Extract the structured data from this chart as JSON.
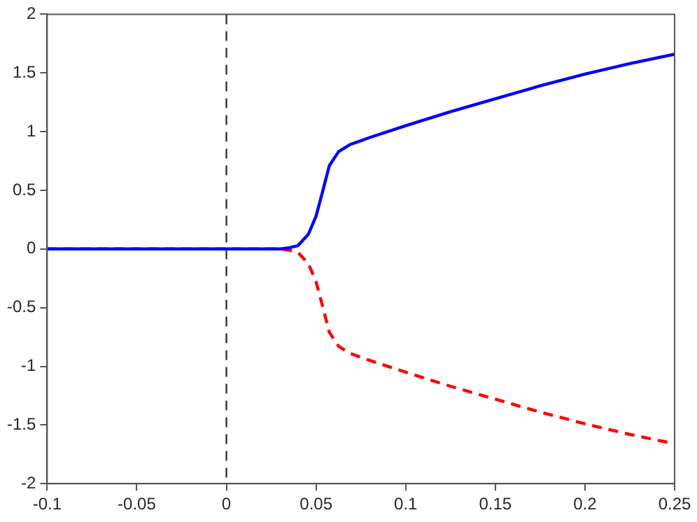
{
  "chart_data": {
    "type": "line",
    "xlim": [
      -0.1,
      0.25
    ],
    "ylim": [
      -2,
      2
    ],
    "xticks": [
      -0.1,
      -0.05,
      0,
      0.05,
      0.1,
      0.15,
      0.2,
      0.25
    ],
    "yticks": [
      -2,
      -1.5,
      -1,
      -0.5,
      0,
      0.5,
      1,
      1.5,
      2
    ],
    "x": [
      -0.1,
      0,
      0.03,
      0.035,
      0.04,
      0.0457,
      0.05,
      0.0535,
      0.0574,
      0.0626,
      0.069,
      0.08,
      0.1,
      0.125,
      0.15,
      0.175,
      0.2,
      0.225,
      0.25
    ],
    "series": [
      {
        "color": "#0000ff",
        "line_style": "solid",
        "values": [
          0,
          0,
          0,
          0.01,
          0.03,
          0.125,
          0.28,
          0.48,
          0.71,
          0.83,
          0.89,
          0.95,
          1.05,
          1.17,
          1.28,
          1.39,
          1.49,
          1.58,
          1.66
        ]
      },
      {
        "color": "#ff0000",
        "line_style": "dashed",
        "values": [
          0,
          0,
          0,
          -0.01,
          -0.03,
          -0.125,
          -0.28,
          -0.48,
          -0.71,
          -0.83,
          -0.89,
          -0.95,
          -1.05,
          -1.17,
          -1.28,
          -1.39,
          -1.49,
          -1.58,
          -1.66
        ]
      }
    ],
    "ref_lines": [
      {
        "axis": "x",
        "value": 0,
        "color": "#333333",
        "line_style": "dashed"
      }
    ],
    "grid": false,
    "legend": false,
    "marker": "none"
  }
}
